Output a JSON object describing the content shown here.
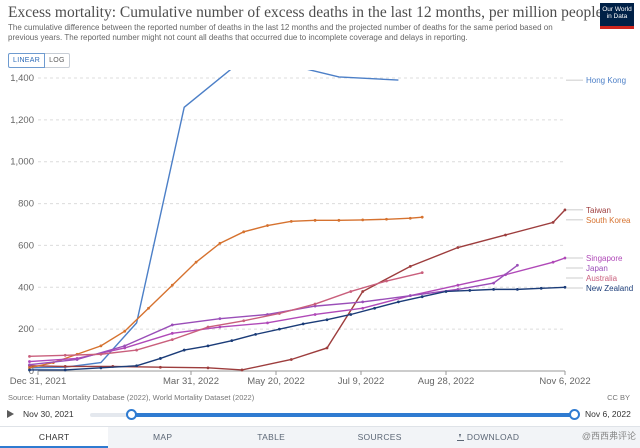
{
  "header": {
    "title": "Excess mortality: Cumulative number of excess deaths in the last 12 months, per million people",
    "subtitle": "The cumulative difference between the reported number of deaths in the last 12 months and the projected number of deaths for the same period based on previous years. The reported number might not count all deaths that occurred due to incomplete coverage and delays in reporting."
  },
  "logo": {
    "line1": "Our World",
    "line2": "in Data",
    "bg": "#002147",
    "accent": "#ce261e"
  },
  "scale_toggle": {
    "linear": "LINEAR",
    "log": "LOG",
    "selected": "LINEAR"
  },
  "footer": {
    "source": "Source: Human Mortality Database (2022), World Mortality Dataset (2022)",
    "license": "CC BY"
  },
  "timeline": {
    "start": "Nov 30, 2021",
    "end": "Nov 6, 2022",
    "start_knob_fraction": 0.086,
    "end_knob_fraction": 1.0
  },
  "tabs": [
    {
      "label": "CHART",
      "active": true
    },
    {
      "label": "MAP",
      "active": false
    },
    {
      "label": "TABLE",
      "active": false
    },
    {
      "label": "SOURCES",
      "active": false
    },
    {
      "label": "DOWNLOAD",
      "active": false,
      "icon": "download-icon"
    }
  ],
  "watermark": "@西西弗评论",
  "chart_data": {
    "type": "line",
    "title": "Excess mortality: Cumulative number of excess deaths in the last 12 months, per million people",
    "xlabel": "",
    "ylabel": "",
    "x_range": [
      "2021-12-31",
      "2022-11-06"
    ],
    "ylim": [
      0,
      1400
    ],
    "y_ticks": [
      0,
      200,
      400,
      600,
      800,
      1000,
      1200,
      1400
    ],
    "y_tick_labels": [
      "0",
      "200",
      "400",
      "600",
      "800",
      "1,000",
      "1,200",
      "1,400"
    ],
    "x_ticks": [
      "2021-12-31",
      "2022-03-31",
      "2022-05-20",
      "2022-07-09",
      "2022-08-28",
      "2022-11-06"
    ],
    "x_tick_labels": [
      "Dec 31, 2021",
      "Mar 31, 2022",
      "May 20, 2022",
      "Jul 9, 2022",
      "Aug 28, 2022",
      "Nov 6, 2022"
    ],
    "grid": "horizontal-dashed",
    "legend": "right-end-labels",
    "series": [
      {
        "name": "Hong Kong",
        "color": "#4c7fc7",
        "markers": false,
        "points": [
          [
            "2021-12-26",
            15
          ],
          [
            "2022-01-16",
            18
          ],
          [
            "2022-02-06",
            40
          ],
          [
            "2022-02-27",
            230
          ],
          [
            "2022-03-27",
            1260
          ],
          [
            "2022-04-24",
            1445
          ],
          [
            "2022-05-29",
            1460
          ],
          [
            "2022-06-26",
            1405
          ],
          [
            "2022-07-31",
            1390
          ]
        ]
      },
      {
        "name": "Taiwan",
        "color": "#9d3d3d",
        "markers": true,
        "points": [
          [
            "2021-12-26",
            25
          ],
          [
            "2022-01-16",
            22
          ],
          [
            "2022-02-13",
            22
          ],
          [
            "2022-03-13",
            18
          ],
          [
            "2022-04-10",
            15
          ],
          [
            "2022-04-30",
            5
          ],
          [
            "2022-05-29",
            55
          ],
          [
            "2022-06-19",
            110
          ],
          [
            "2022-07-10",
            380
          ],
          [
            "2022-08-07",
            500
          ],
          [
            "2022-09-04",
            590
          ],
          [
            "2022-10-02",
            650
          ],
          [
            "2022-10-30",
            710
          ],
          [
            "2022-11-06",
            770
          ]
        ]
      },
      {
        "name": "South Korea",
        "color": "#d6722f",
        "markers": true,
        "points": [
          [
            "2021-12-26",
            15
          ],
          [
            "2022-01-09",
            40
          ],
          [
            "2022-01-23",
            80
          ],
          [
            "2022-02-06",
            120
          ],
          [
            "2022-02-20",
            190
          ],
          [
            "2022-03-06",
            300
          ],
          [
            "2022-03-20",
            410
          ],
          [
            "2022-04-03",
            520
          ],
          [
            "2022-04-17",
            610
          ],
          [
            "2022-05-01",
            665
          ],
          [
            "2022-05-15",
            695
          ],
          [
            "2022-05-29",
            715
          ],
          [
            "2022-06-12",
            720
          ],
          [
            "2022-06-26",
            720
          ],
          [
            "2022-07-10",
            722
          ],
          [
            "2022-07-24",
            725
          ],
          [
            "2022-08-07",
            730
          ],
          [
            "2022-08-14",
            735
          ]
        ]
      },
      {
        "name": "Singapore",
        "color": "#b049b8",
        "markers": true,
        "points": [
          [
            "2021-12-26",
            45
          ],
          [
            "2022-01-23",
            60
          ],
          [
            "2022-02-20",
            110
          ],
          [
            "2022-03-20",
            180
          ],
          [
            "2022-04-17",
            210
          ],
          [
            "2022-05-15",
            230
          ],
          [
            "2022-06-12",
            270
          ],
          [
            "2022-07-10",
            300
          ],
          [
            "2022-08-07",
            360
          ],
          [
            "2022-09-04",
            410
          ],
          [
            "2022-10-02",
            460
          ],
          [
            "2022-10-30",
            520
          ],
          [
            "2022-11-06",
            540
          ]
        ]
      },
      {
        "name": "Japan",
        "color": "#9a4eb8",
        "markers": true,
        "points": [
          [
            "2021-12-26",
            30
          ],
          [
            "2022-01-23",
            55
          ],
          [
            "2022-02-20",
            120
          ],
          [
            "2022-03-20",
            220
          ],
          [
            "2022-04-17",
            250
          ],
          [
            "2022-05-15",
            270
          ],
          [
            "2022-06-12",
            310
          ],
          [
            "2022-07-10",
            330
          ],
          [
            "2022-08-07",
            360
          ],
          [
            "2022-09-04",
            390
          ],
          [
            "2022-09-25",
            420
          ],
          [
            "2022-10-09",
            505
          ]
        ]
      },
      {
        "name": "Australia",
        "color": "#c95f7c",
        "markers": true,
        "points": [
          [
            "2021-12-26",
            70
          ],
          [
            "2022-01-16",
            75
          ],
          [
            "2022-02-06",
            80
          ],
          [
            "2022-02-27",
            100
          ],
          [
            "2022-03-20",
            150
          ],
          [
            "2022-04-10",
            210
          ],
          [
            "2022-05-01",
            240
          ],
          [
            "2022-05-22",
            275
          ],
          [
            "2022-06-12",
            320
          ],
          [
            "2022-07-03",
            380
          ],
          [
            "2022-07-24",
            430
          ],
          [
            "2022-08-14",
            470
          ]
        ]
      },
      {
        "name": "New Zealand",
        "color": "#1b3c78",
        "markers": true,
        "points": [
          [
            "2021-12-26",
            5
          ],
          [
            "2022-01-16",
            5
          ],
          [
            "2022-02-06",
            15
          ],
          [
            "2022-02-27",
            25
          ],
          [
            "2022-03-13",
            60
          ],
          [
            "2022-03-27",
            100
          ],
          [
            "2022-04-10",
            120
          ],
          [
            "2022-04-24",
            145
          ],
          [
            "2022-05-08",
            175
          ],
          [
            "2022-05-22",
            200
          ],
          [
            "2022-06-05",
            225
          ],
          [
            "2022-06-19",
            245
          ],
          [
            "2022-07-03",
            270
          ],
          [
            "2022-07-17",
            300
          ],
          [
            "2022-07-31",
            330
          ],
          [
            "2022-08-14",
            355
          ],
          [
            "2022-08-28",
            380
          ],
          [
            "2022-09-11",
            385
          ],
          [
            "2022-09-25",
            390
          ],
          [
            "2022-10-09",
            390
          ],
          [
            "2022-10-23",
            395
          ],
          [
            "2022-11-06",
            400
          ]
        ]
      }
    ],
    "end_labels": [
      {
        "series": "Hong Kong",
        "text": "Hong Kong"
      },
      {
        "series": "Taiwan",
        "text": "Taiwan"
      },
      {
        "series": "South Korea",
        "text": "South Korea"
      },
      {
        "series": "Singapore",
        "text": "Singapore"
      },
      {
        "series": "Japan",
        "text": "Japan"
      },
      {
        "series": "Australia",
        "text": "Australia"
      },
      {
        "series": "New Zealand",
        "text": "New Zealand"
      }
    ]
  }
}
